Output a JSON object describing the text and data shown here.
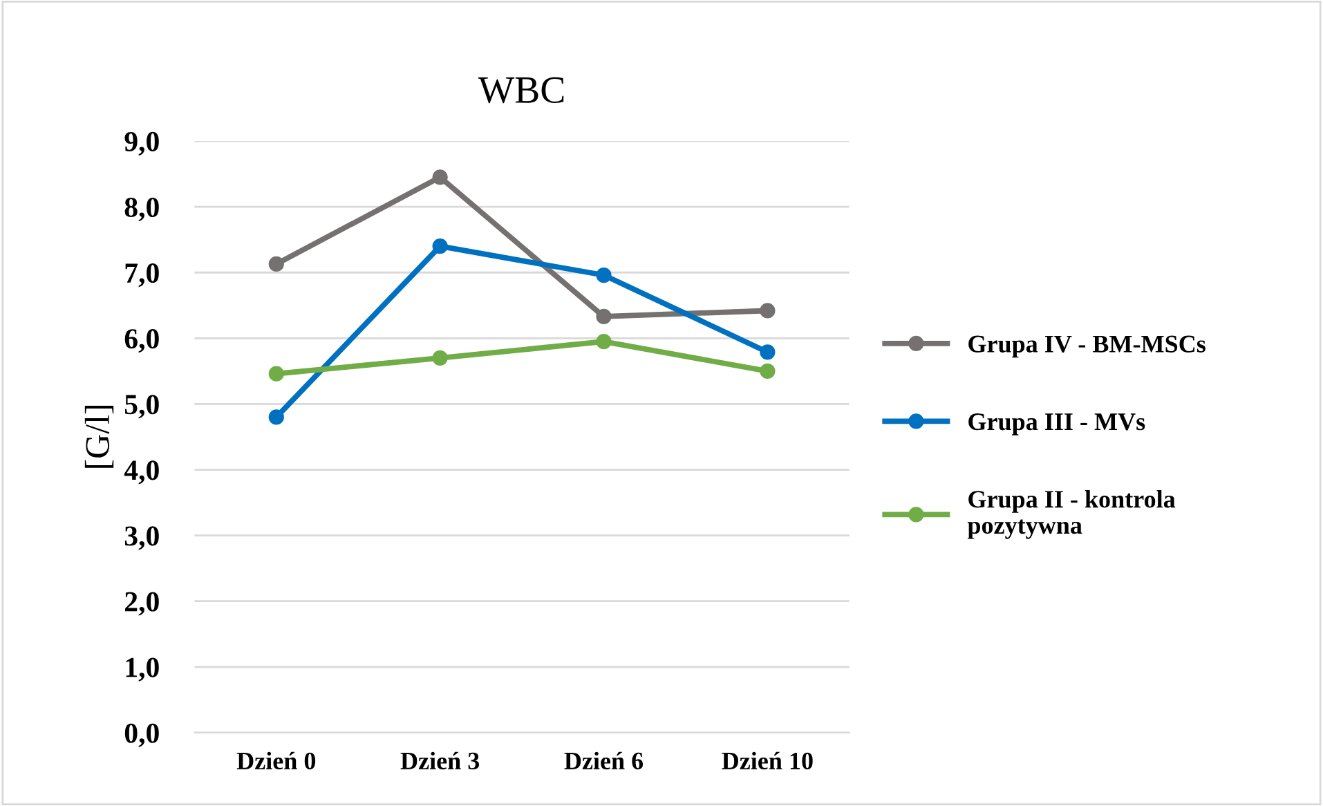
{
  "chart_data": {
    "type": "line",
    "title": "WBC",
    "ylabel": "[G/l]",
    "categories": [
      "Dzień 0",
      "Dzień 3",
      "Dzień 6",
      "Dzień 10"
    ],
    "series": [
      {
        "name": "Grupa IV - BM-MSCs",
        "color": "#767171",
        "values": [
          7.13,
          8.45,
          6.33,
          6.42
        ]
      },
      {
        "name": "Grupa III - MVs",
        "color": "#0070c0",
        "values": [
          4.8,
          7.4,
          6.96,
          5.79
        ]
      },
      {
        "name": "Grupa II - kontrola\npozytywna",
        "color": "#70ad47",
        "values": [
          5.46,
          5.7,
          5.95,
          5.5
        ]
      }
    ],
    "ylim": [
      0,
      9
    ],
    "yticks": [
      {
        "value": 0,
        "label": "0,0"
      },
      {
        "value": 1,
        "label": "1,0"
      },
      {
        "value": 2,
        "label": "2,0"
      },
      {
        "value": 3,
        "label": "3,0"
      },
      {
        "value": 4,
        "label": "4,0"
      },
      {
        "value": 5,
        "label": "5,0"
      },
      {
        "value": 6,
        "label": "6,0"
      },
      {
        "value": 7,
        "label": "7,0"
      },
      {
        "value": 8,
        "label": "8,0"
      },
      {
        "value": 9,
        "label": "9,0"
      }
    ],
    "grid": "y",
    "legend": "right",
    "marker": "circle",
    "line_style": "solid"
  }
}
